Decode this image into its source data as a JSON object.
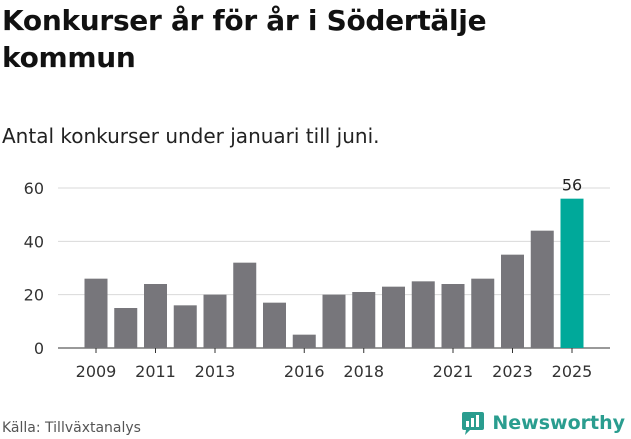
{
  "title": "Konkurser år för år i Södertälje kommun",
  "subtitle": "Antal konkurser under januari till juni.",
  "source": "Källa: Tillväxtanalys",
  "brand": {
    "name": "Newsworthy",
    "icon": "newsworthy-logo-icon"
  },
  "colors": {
    "bar": "#77767b",
    "highlight": "#00a99a",
    "grid": "#d9d9d9",
    "brand": "#2a9d8f"
  },
  "chart_data": {
    "type": "bar",
    "title": "Konkurser år för år i Södertälje kommun",
    "subtitle": "Antal konkurser under januari till juni.",
    "categories": [
      "2009",
      "2010",
      "2011",
      "2012",
      "2013",
      "2014",
      "2015",
      "2016",
      "2017",
      "2018",
      "2019",
      "2020",
      "2021",
      "2022",
      "2023",
      "2024",
      "2025"
    ],
    "values": [
      26,
      15,
      24,
      16,
      20,
      32,
      17,
      5,
      20,
      21,
      23,
      25,
      24,
      26,
      35,
      44,
      56
    ],
    "x_tick_labels": [
      "2009",
      "2011",
      "2013",
      "2016",
      "2018",
      "2021",
      "2023",
      "2025"
    ],
    "y_ticks": [
      0,
      20,
      40,
      60
    ],
    "ylim": [
      0,
      60
    ],
    "highlight_index": 16,
    "data_labels": [
      {
        "category": "2025",
        "value": "56"
      }
    ],
    "grid": true,
    "legend": "none"
  }
}
